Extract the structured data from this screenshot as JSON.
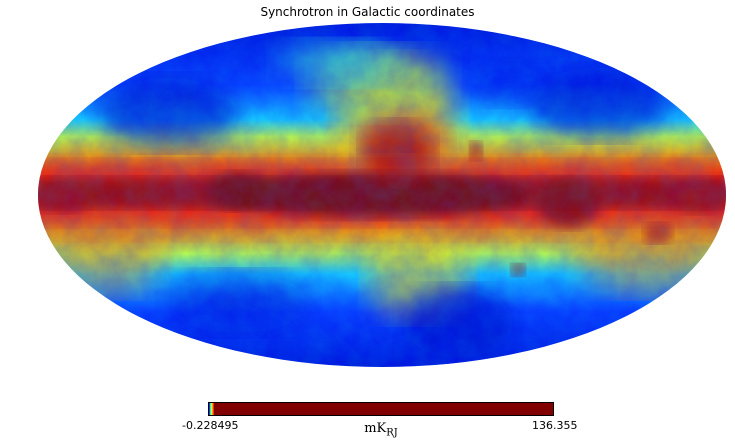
{
  "title": "Synchrotron in Galactic coordinates",
  "map": {
    "projection": "mollweide",
    "coordinate_system": "galactic",
    "colormap": "jet",
    "colormap_stops": [
      "#00007f",
      "#0000ff",
      "#00ffff",
      "#ffff00",
      "#ff7f00",
      "#ff0000",
      "#7f0000"
    ]
  },
  "colorbar": {
    "min_label": "-0.228495",
    "max_label": "136.355",
    "unit_main": "mK",
    "unit_sub": "RJ",
    "saturated_color": "#800000",
    "low_colors": [
      "#00007f",
      "#0000ff",
      "#00ffff",
      "#ffff00",
      "#ff7f00",
      "#ff0000"
    ]
  }
}
